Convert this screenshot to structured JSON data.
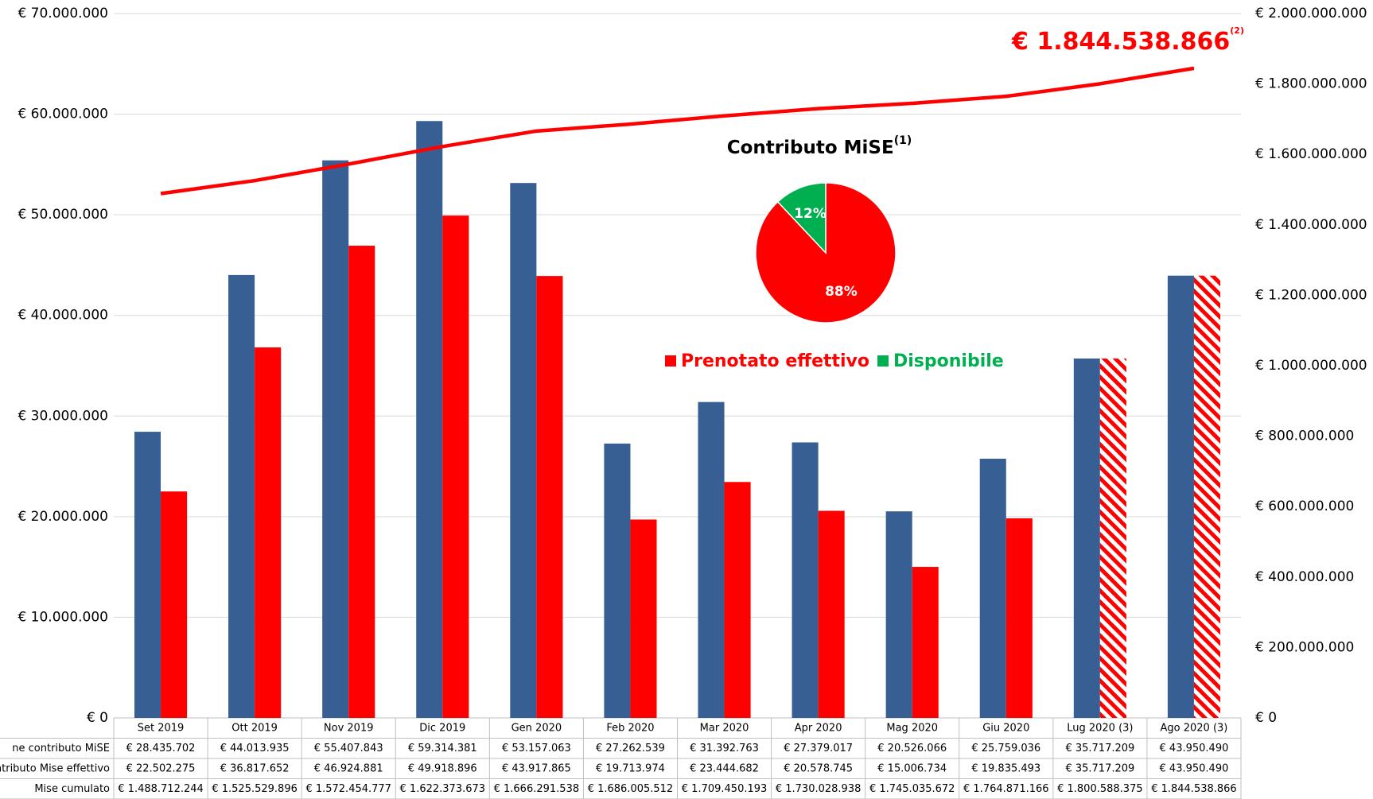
{
  "chart_data": [
    {
      "type": "bar",
      "categories": [
        "Set 2019",
        "Ott 2019",
        "Nov 2019",
        "Dic 2019",
        "Gen 2020",
        "Feb 2020",
        "Mar 2020",
        "Apr 2020",
        "Mag 2020",
        "Giu 2020",
        "Lug 2020 (3)",
        "Ago 2020 (3)"
      ],
      "series": [
        {
          "name": "ne contributo MiSE",
          "color": "#375f93",
          "type": "bar",
          "values": [
            28435702,
            44013935,
            55407843,
            59314381,
            53157063,
            27262539,
            31392763,
            27379017,
            20526066,
            25759036,
            35717209,
            43950490
          ],
          "value_labels": [
            "€ 28.435.702",
            "€ 44.013.935",
            "€ 55.407.843",
            "€ 59.314.381",
            "€ 53.157.063",
            "€ 27.262.539",
            "€ 31.392.763",
            "€ 27.379.017",
            "€ 20.526.066",
            "€ 25.759.036",
            "€ 35.717.209",
            "€ 43.950.490"
          ]
        },
        {
          "name": "ontributo Mise effettivo",
          "color": "#ff0000",
          "type": "bar",
          "hatched": [
            false,
            false,
            false,
            false,
            false,
            false,
            false,
            false,
            false,
            false,
            true,
            true
          ],
          "values": [
            22502275,
            36817652,
            46924881,
            49918896,
            43917865,
            19713974,
            23444682,
            20578745,
            15006734,
            19835493,
            35717209,
            43950490
          ],
          "value_labels": [
            "€ 22.502.275",
            "€ 36.817.652",
            "€ 46.924.881",
            "€ 49.918.896",
            "€ 43.917.865",
            "€ 19.713.974",
            "€ 23.444.682",
            "€ 20.578.745",
            "€ 15.006.734",
            "€ 19.835.493",
            "€ 35.717.209",
            "€ 43.950.490"
          ]
        },
        {
          "name": "Mise cumulato",
          "color": "#ff0000",
          "type": "line",
          "axis": "y2",
          "values": [
            1488712244,
            1525529896,
            1572454777,
            1622373673,
            1666291538,
            1686005512,
            1709450193,
            1730028938,
            1745035672,
            1764871166,
            1800588375,
            1844538866
          ],
          "value_labels": [
            "€ 1.488.712.244",
            "€ 1.525.529.896",
            "€ 1.572.454.777",
            "€ 1.622.373.673",
            "€ 1.666.291.538",
            "€ 1.686.005.512",
            "€ 1.709.450.193",
            "€ 1.730.028.938",
            "€ 1.745.035.672",
            "€ 1.764.871.166",
            "€ 1.800.588.375",
            "€ 1.844.538.866"
          ]
        }
      ],
      "annotation": {
        "text": "€ 1.844.538.866",
        "note": "(2)"
      },
      "ylim": [
        0,
        70000000
      ],
      "yticks": [
        {
          "value": 0,
          "label": "€ 0"
        },
        {
          "value": 10000000,
          "label": "€ 10.000.000"
        },
        {
          "value": 20000000,
          "label": "€ 20.000.000"
        },
        {
          "value": 30000000,
          "label": "€ 30.000.000"
        },
        {
          "value": 40000000,
          "label": "€ 40.000.000"
        },
        {
          "value": 50000000,
          "label": "€ 50.000.000"
        },
        {
          "value": 60000000,
          "label": "€ 60.000.000"
        },
        {
          "value": 70000000,
          "label": "€ 70.000.000"
        }
      ],
      "y2lim": [
        0,
        2000000000
      ],
      "y2ticks": [
        {
          "value": 0,
          "label": "€ 0"
        },
        {
          "value": 200000000,
          "label": "€ 200.000.000"
        },
        {
          "value": 400000000,
          "label": "€ 400.000.000"
        },
        {
          "value": 600000000,
          "label": "€ 600.000.000"
        },
        {
          "value": 800000000,
          "label": "€ 800.000.000"
        },
        {
          "value": 1000000000,
          "label": "€ 1.000.000.000"
        },
        {
          "value": 1200000000,
          "label": "€ 1.200.000.000"
        },
        {
          "value": 1400000000,
          "label": "€ 1.400.000.000"
        },
        {
          "value": 1600000000,
          "label": "€ 1.600.000.000"
        },
        {
          "value": 1800000000,
          "label": "€ 1.800.000.000"
        },
        {
          "value": 2000000000,
          "label": "€ 2.000.000.000"
        }
      ],
      "grid": true
    },
    {
      "type": "pie",
      "title": "Contributo MiSE",
      "title_note": "(1)",
      "categories": [
        "Prenotato effettivo",
        "Disponibile"
      ],
      "values": [
        88,
        12
      ],
      "value_labels": [
        "88%",
        "12%"
      ],
      "colors": [
        "#ff0000",
        "#00b050"
      ]
    }
  ]
}
